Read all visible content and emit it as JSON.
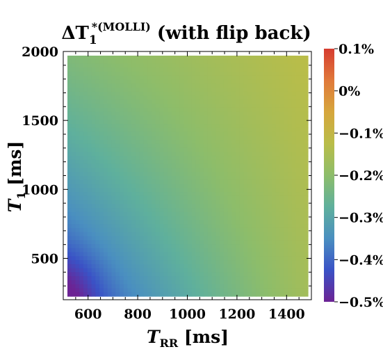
{
  "chart_data": {
    "type": "heatmap",
    "title_prefix": "ΔT",
    "title_sub": "1",
    "title_sup": "*(MOLLI)",
    "title_suffix": " (with flip back)",
    "xlabel_main": "T",
    "xlabel_sub": "RR",
    "xlabel_unit": " [ms]",
    "ylabel_main": "T",
    "ylabel_sub": "1",
    "ylabel_unit": " [ms]",
    "x_range": [
      500,
      1500
    ],
    "y_range": [
      200,
      2000
    ],
    "x_ticks": [
      "600",
      "800",
      "1000",
      "1200",
      "1400"
    ],
    "x_tick_values": [
      600,
      800,
      1000,
      1200,
      1400
    ],
    "y_ticks": [
      "500",
      "1000",
      "1500",
      "2000"
    ],
    "y_tick_values": [
      500,
      1000,
      1500,
      2000
    ],
    "colorbar_range": [
      -0.5,
      0.1
    ],
    "colorbar_ticks": [
      "0.1%",
      "0%",
      "−0.1%",
      "−0.2%",
      "−0.3%",
      "−0.4%",
      "−0.5%"
    ],
    "colorbar_tick_values": [
      0.1,
      0.0,
      -0.1,
      -0.2,
      -0.3,
      -0.4,
      -0.5
    ],
    "colorscale": [
      "#6c2394",
      "#3a52c6",
      "#4a8fc0",
      "#5fb09c",
      "#8dbd6a",
      "#b9bd49",
      "#d6a63c",
      "#e0793a",
      "#d63c30"
    ],
    "values_corners_percent": {
      "x500_y200": -0.45,
      "x500_y2000": -0.22,
      "x1500_y200": -0.16,
      "x1500_y2000": -0.12
    },
    "grid": false
  }
}
